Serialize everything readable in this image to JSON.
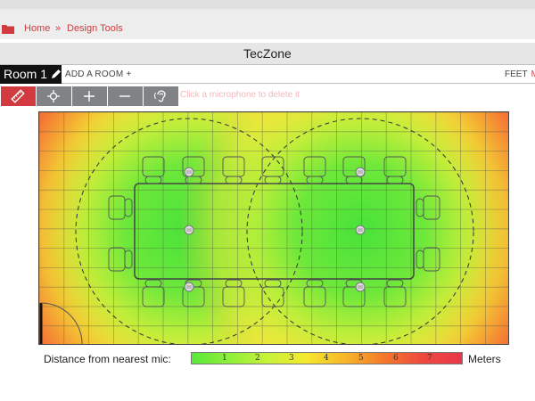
{
  "breadcrumb": {
    "home": "Home",
    "separator": "»",
    "current": "Design Tools"
  },
  "app": {
    "title": "TecZone"
  },
  "room_bar": {
    "room_label": "Room 1",
    "add_room": "ADD A ROOM +",
    "units_feet": "FEET",
    "units_meters": "M"
  },
  "toolbar": {
    "tools": [
      "ruler-icon",
      "crosshair-icon",
      "plus-icon",
      "minus-icon",
      "ear-icon"
    ],
    "hint": "Click a microphone to delete it"
  },
  "legend": {
    "label": "Distance from nearest mic:",
    "ticks": [
      "1",
      "2",
      "3",
      "4",
      "5",
      "6",
      "7"
    ],
    "unit": "Meters"
  },
  "colors": {
    "accent": "#d13a3f",
    "tool_gray": "#808285",
    "near": "#59e83a",
    "far": "#e8374a"
  }
}
